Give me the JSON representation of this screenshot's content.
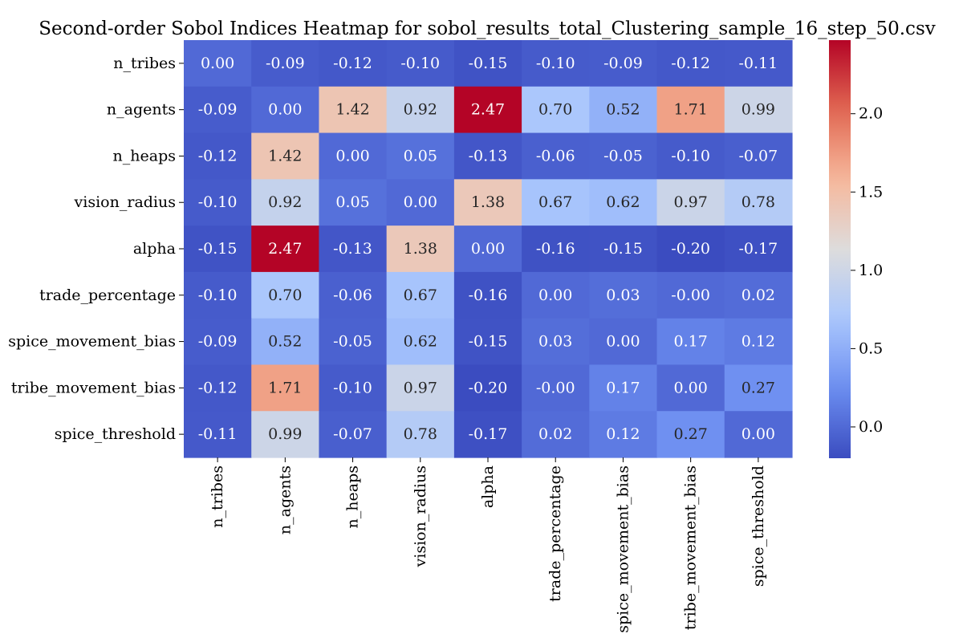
{
  "chart_data": {
    "type": "heatmap",
    "title": "Second-order Sobol Indices Heatmap for sobol_results_total_Clustering_sample_16_step_50.csv",
    "rows": [
      "n_tribes",
      "n_agents",
      "n_heaps",
      "vision_radius",
      "alpha",
      "trade_percentage",
      "spice_movement_bias",
      "tribe_movement_bias",
      "spice_threshold"
    ],
    "columns": [
      "n_tribes",
      "n_agents",
      "n_heaps",
      "vision_radius",
      "alpha",
      "trade_percentage",
      "spice_movement_bias",
      "tribe_movement_bias",
      "spice_threshold"
    ],
    "values": [
      [
        0.0,
        -0.09,
        -0.12,
        -0.1,
        -0.15,
        -0.1,
        -0.09,
        -0.12,
        -0.11
      ],
      [
        -0.09,
        0.0,
        1.42,
        0.92,
        2.47,
        0.7,
        0.52,
        1.71,
        0.99
      ],
      [
        -0.12,
        1.42,
        0.0,
        0.05,
        -0.13,
        -0.06,
        -0.05,
        -0.1,
        -0.07
      ],
      [
        -0.1,
        0.92,
        0.05,
        0.0,
        1.38,
        0.67,
        0.62,
        0.97,
        0.78
      ],
      [
        -0.15,
        2.47,
        -0.13,
        1.38,
        0.0,
        -0.16,
        -0.15,
        -0.2,
        -0.17
      ],
      [
        -0.1,
        0.7,
        -0.06,
        0.67,
        -0.16,
        0.0,
        0.03,
        -0.0,
        0.02
      ],
      [
        -0.09,
        0.52,
        -0.05,
        0.62,
        -0.15,
        0.03,
        0.0,
        0.17,
        0.12
      ],
      [
        -0.12,
        1.71,
        -0.1,
        0.97,
        -0.2,
        -0.0,
        0.17,
        0.0,
        0.27
      ],
      [
        -0.11,
        0.99,
        -0.07,
        0.78,
        -0.17,
        0.02,
        0.12,
        0.27,
        0.0
      ]
    ],
    "value_labels": [
      [
        "0.00",
        "-0.09",
        "-0.12",
        "-0.10",
        "-0.15",
        "-0.10",
        "-0.09",
        "-0.12",
        "-0.11"
      ],
      [
        "-0.09",
        "0.00",
        "1.42",
        "0.92",
        "2.47",
        "0.70",
        "0.52",
        "1.71",
        "0.99"
      ],
      [
        "-0.12",
        "1.42",
        "0.00",
        "0.05",
        "-0.13",
        "-0.06",
        "-0.05",
        "-0.10",
        "-0.07"
      ],
      [
        "-0.10",
        "0.92",
        "0.05",
        "0.00",
        "1.38",
        "0.67",
        "0.62",
        "0.97",
        "0.78"
      ],
      [
        "-0.15",
        "2.47",
        "-0.13",
        "1.38",
        "0.00",
        "-0.16",
        "-0.15",
        "-0.20",
        "-0.17"
      ],
      [
        "-0.10",
        "0.70",
        "-0.06",
        "0.67",
        "-0.16",
        "0.00",
        "0.03",
        "-0.00",
        "0.02"
      ],
      [
        "-0.09",
        "0.52",
        "-0.05",
        "0.62",
        "-0.15",
        "0.03",
        "0.00",
        "0.17",
        "0.12"
      ],
      [
        "-0.12",
        "1.71",
        "-0.10",
        "0.97",
        "-0.20",
        "-0.00",
        "0.17",
        "0.00",
        "0.27"
      ],
      [
        "-0.11",
        "0.99",
        "-0.07",
        "0.78",
        "-0.17",
        "0.02",
        "0.12",
        "0.27",
        "0.00"
      ]
    ],
    "colormap": "coolwarm",
    "colormap_stops": [
      "#3b4cc0",
      "#6b8df0",
      "#aac7fd",
      "#dddcdc",
      "#f6b89c",
      "#e16852",
      "#b40426"
    ],
    "vmin": -0.2,
    "vmax": 2.47,
    "colorbar": {
      "ticks": [
        0.0,
        0.5,
        1.0,
        1.5,
        2.0
      ],
      "tick_labels": [
        "0.0",
        "0.5",
        "1.0",
        "1.5",
        "2.0"
      ]
    },
    "legend_placement": "right",
    "grid": false
  }
}
